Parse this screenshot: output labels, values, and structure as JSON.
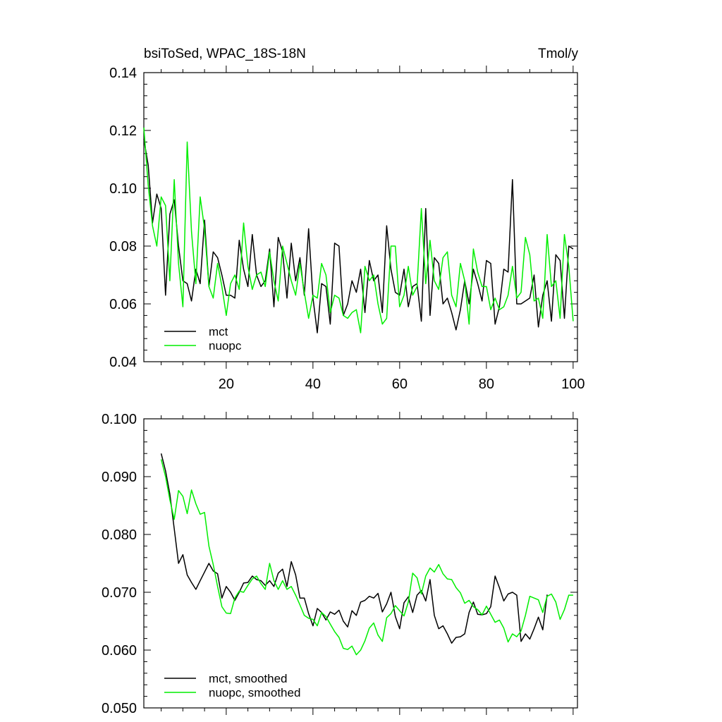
{
  "chart_data": [
    {
      "type": "line",
      "title": "bsiToSed, WPAC_18S-18N",
      "units": "Tmol/y",
      "xlim": [
        1,
        101
      ],
      "ylim": [
        0.04,
        0.14
      ],
      "y_ticks": [
        0.04,
        0.06,
        0.08,
        0.1,
        0.12,
        0.14
      ],
      "y_tick_labels": [
        "0.04",
        "0.06",
        "0.08",
        "0.10",
        "0.12",
        "0.14"
      ],
      "x_ticks": [
        20,
        40,
        60,
        80,
        100
      ],
      "x_tick_labels": [
        "20",
        "40",
        "60",
        "80",
        "100"
      ],
      "legend_position": "bottom-left",
      "series": [
        {
          "name": "mct",
          "color": "#000000",
          "values": [
            0.117,
            0.108,
            0.088,
            0.098,
            0.093,
            0.063,
            0.091,
            0.096,
            0.08,
            0.068,
            0.067,
            0.061,
            0.072,
            0.067,
            0.089,
            0.066,
            0.078,
            0.076,
            0.07,
            0.063,
            0.063,
            0.062,
            0.082,
            0.072,
            0.066,
            0.084,
            0.07,
            0.066,
            0.068,
            0.079,
            0.059,
            0.083,
            0.078,
            0.062,
            0.081,
            0.068,
            0.076,
            0.063,
            0.086,
            0.062,
            0.05,
            0.067,
            0.066,
            0.053,
            0.081,
            0.08,
            0.056,
            0.06,
            0.068,
            0.064,
            0.072,
            0.057,
            0.075,
            0.068,
            0.07,
            0.057,
            0.087,
            0.072,
            0.064,
            0.063,
            0.072,
            0.059,
            0.066,
            0.067,
            0.054,
            0.093,
            0.056,
            0.076,
            0.074,
            0.06,
            0.062,
            0.057,
            0.051,
            0.058,
            0.068,
            0.06,
            0.072,
            0.067,
            0.061,
            0.075,
            0.074,
            0.053,
            0.059,
            0.072,
            0.071,
            0.103,
            0.06,
            0.06,
            0.061,
            0.062,
            0.07,
            0.052,
            0.063,
            0.068,
            0.054,
            0.077,
            0.075,
            0.055,
            0.08,
            0.079
          ]
        },
        {
          "name": "nuopc",
          "color": "#00ee00",
          "values": [
            0.121,
            0.101,
            0.087,
            0.08,
            0.097,
            0.094,
            0.068,
            0.103,
            0.074,
            0.059,
            0.116,
            0.085,
            0.067,
            0.097,
            0.086,
            0.066,
            0.062,
            0.074,
            0.066,
            0.056,
            0.067,
            0.07,
            0.065,
            0.088,
            0.073,
            0.065,
            0.07,
            0.071,
            0.066,
            0.078,
            0.068,
            0.061,
            0.08,
            0.074,
            0.068,
            0.063,
            0.074,
            0.064,
            0.055,
            0.063,
            0.062,
            0.074,
            0.07,
            0.057,
            0.063,
            0.062,
            0.056,
            0.055,
            0.057,
            0.058,
            0.05,
            0.073,
            0.068,
            0.07,
            0.06,
            0.053,
            0.055,
            0.08,
            0.08,
            0.059,
            0.063,
            0.073,
            0.063,
            0.066,
            0.093,
            0.067,
            0.082,
            0.068,
            0.065,
            0.076,
            0.078,
            0.063,
            0.059,
            0.074,
            0.068,
            0.053,
            0.079,
            0.071,
            0.066,
            0.066,
            0.058,
            0.062,
            0.058,
            0.059,
            0.063,
            0.073,
            0.062,
            0.064,
            0.083,
            0.077,
            0.061,
            0.062,
            0.055,
            0.084,
            0.066,
            0.068,
            0.055,
            0.084,
            0.073,
            0.054
          ]
        }
      ]
    },
    {
      "type": "line",
      "title": "",
      "xlim": [
        1,
        101
      ],
      "ylim": [
        0.05,
        0.1
      ],
      "y_ticks": [
        0.05,
        0.06,
        0.07,
        0.08,
        0.09,
        0.1
      ],
      "y_tick_labels": [
        "0.050",
        "0.060",
        "0.070",
        "0.080",
        "0.090",
        "0.100"
      ],
      "x_ticks": [
        20,
        40,
        60,
        80,
        100
      ],
      "legend_position": "bottom-left",
      "series": [
        {
          "name": "mct, smoothed",
          "color": "#000000",
          "values": [
            0.094,
            0.091,
            0.087,
            0.081,
            0.075,
            0.0765,
            0.073,
            0.0717,
            0.0705,
            0.072,
            0.0735,
            0.075,
            0.0737,
            0.0732,
            0.069,
            0.071,
            0.07,
            0.0686,
            0.07,
            0.0716,
            0.0717,
            0.0728,
            0.0722,
            0.072,
            0.0712,
            0.072,
            0.071,
            0.0733,
            0.074,
            0.071,
            0.0753,
            0.073,
            0.069,
            0.069,
            0.0663,
            0.0642,
            0.0672,
            0.0665,
            0.0652,
            0.0666,
            0.0662,
            0.0669,
            0.065,
            0.064,
            0.0668,
            0.066,
            0.0683,
            0.0686,
            0.0693,
            0.069,
            0.0698,
            0.0666,
            0.068,
            0.07,
            0.0658,
            0.0637,
            0.0682,
            0.0692,
            0.0665,
            0.0695,
            0.0703,
            0.0685,
            0.0722,
            0.066,
            0.0637,
            0.0642,
            0.0628,
            0.0612,
            0.0622,
            0.0623,
            0.0628,
            0.0665,
            0.0683,
            0.0662,
            0.0661,
            0.0663,
            0.0675,
            0.0728,
            0.0708,
            0.0685,
            0.0697,
            0.07,
            0.0695,
            0.0615,
            0.0628,
            0.0619,
            0.0637,
            0.0657,
            0.0635,
            0.0696
          ]
        },
        {
          "name": "nuopc, smoothed",
          "color": "#00ee00",
          "values": [
            0.093,
            0.09,
            0.086,
            0.0826,
            0.0876,
            0.0866,
            0.0836,
            0.0877,
            0.0853,
            0.0835,
            0.0838,
            0.078,
            0.0748,
            0.071,
            0.0675,
            0.0664,
            0.0663,
            0.069,
            0.0702,
            0.07,
            0.0712,
            0.0723,
            0.0728,
            0.0715,
            0.0705,
            0.075,
            0.072,
            0.0705,
            0.072,
            0.0705,
            0.071,
            0.0695,
            0.0678,
            0.066,
            0.0655,
            0.0653,
            0.0642,
            0.0665,
            0.0658,
            0.0645,
            0.0632,
            0.0622,
            0.0603,
            0.0601,
            0.0607,
            0.0592,
            0.06,
            0.0616,
            0.0638,
            0.0647,
            0.0626,
            0.0615,
            0.0656,
            0.0663,
            0.0677,
            0.0668,
            0.0659,
            0.0683,
            0.0733,
            0.0725,
            0.0697,
            0.0728,
            0.0742,
            0.0735,
            0.0748,
            0.0732,
            0.0723,
            0.0722,
            0.0708,
            0.0699,
            0.0681,
            0.0686,
            0.0675,
            0.067,
            0.0661,
            0.0676,
            0.0662,
            0.0648,
            0.0652,
            0.0638,
            0.0614,
            0.0628,
            0.0623,
            0.0633,
            0.066,
            0.0693,
            0.069,
            0.0687,
            0.0665,
            0.0693,
            0.0697,
            0.0683,
            0.0653,
            0.067,
            0.0695,
            0.0695
          ]
        }
      ]
    }
  ]
}
